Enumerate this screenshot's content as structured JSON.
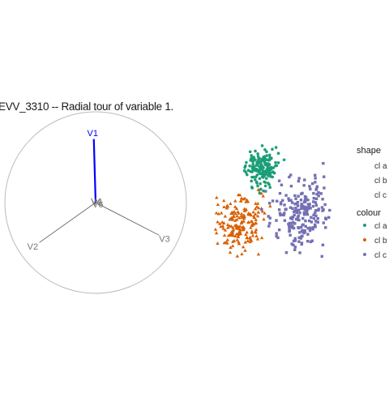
{
  "chart_data": {
    "type": "scatter",
    "title": "EVV_3310 -- Radial tour of variable 1.",
    "axes_panel": {
      "axes": [
        {
          "label": "V1",
          "x": -0.02,
          "y": 0.7,
          "highlighted": true
        },
        {
          "label": "V2",
          "x": -0.62,
          "y": -0.44
        },
        {
          "label": "V3",
          "x": 0.7,
          "y": -0.36
        },
        {
          "label": "V4",
          "x": 0.0,
          "y": 0.02
        },
        {
          "label": "V5",
          "x": 0.01,
          "y": 0.0
        },
        {
          "label": "V6",
          "x": -0.01,
          "y": -0.02
        }
      ],
      "highlight_color": "#0000ff",
      "axis_color": "#555555",
      "circle_color": "#bbbbbb"
    },
    "series": [
      {
        "name": "cl a",
        "shape": "circle",
        "color": "#1b9e77",
        "center": [
          323,
          208
        ],
        "spread": [
          10,
          11
        ],
        "n": 170
      },
      {
        "name": "cl b",
        "shape": "triangle",
        "color": "#d95f02",
        "center": [
          295,
          275
        ],
        "spread": [
          15,
          16
        ],
        "n": 185
      },
      {
        "name": "cl c",
        "shape": "square",
        "color": "#7570b3",
        "center": [
          372,
          265
        ],
        "spread": [
          18,
          20
        ],
        "n": 210
      }
    ],
    "legend": {
      "placement": "right",
      "shape_title": "shape",
      "colour_title": "colour",
      "entries": [
        "cl a",
        "cl b",
        "cl c"
      ]
    }
  }
}
